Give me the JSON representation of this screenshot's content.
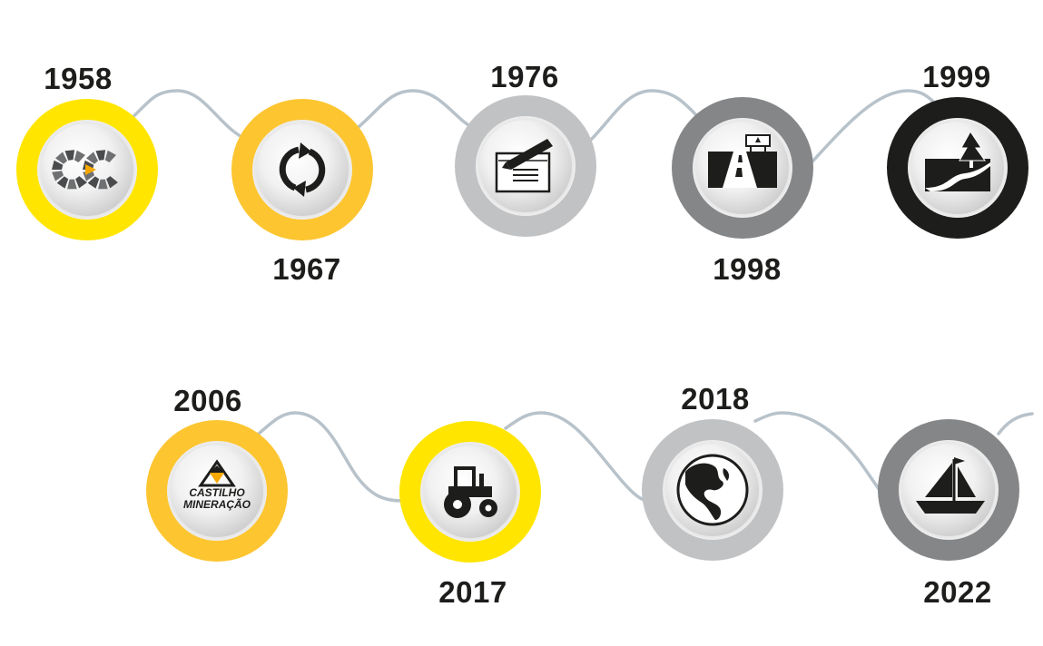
{
  "colors": {
    "connector": "#b7c2ca",
    "text": "#1d1d1b",
    "yellow": "#ffe500",
    "amber": "#fdc530",
    "silver": "#c1c2c4",
    "gray": "#858688",
    "black": "#1d1d1b",
    "inner_light": "#f4f4f4",
    "inner_shade": "#cfcfcf"
  },
  "milestones": [
    {
      "year": "1958",
      "ring": "yellow",
      "icon": "cc-logo-icon"
    },
    {
      "year": "1967",
      "ring": "amber",
      "icon": "recycle-arrows-icon"
    },
    {
      "year": "1976",
      "ring": "silver",
      "icon": "signing-document-icon"
    },
    {
      "year": "1998",
      "ring": "gray",
      "icon": "highway-icon"
    },
    {
      "year": "1999",
      "ring": "black",
      "icon": "landscape-river-tree-icon"
    },
    {
      "year": "2006",
      "ring": "amber",
      "icon": "castilho-mineracao-logo-icon",
      "logo_text": [
        "CASTILHO",
        "MINERAÇÃO"
      ]
    },
    {
      "year": "2017",
      "ring": "yellow",
      "icon": "tractor-icon"
    },
    {
      "year": "2018",
      "ring": "silver",
      "icon": "globe-americas-icon"
    },
    {
      "year": "2022",
      "ring": "gray",
      "icon": "sailboat-icon"
    }
  ]
}
